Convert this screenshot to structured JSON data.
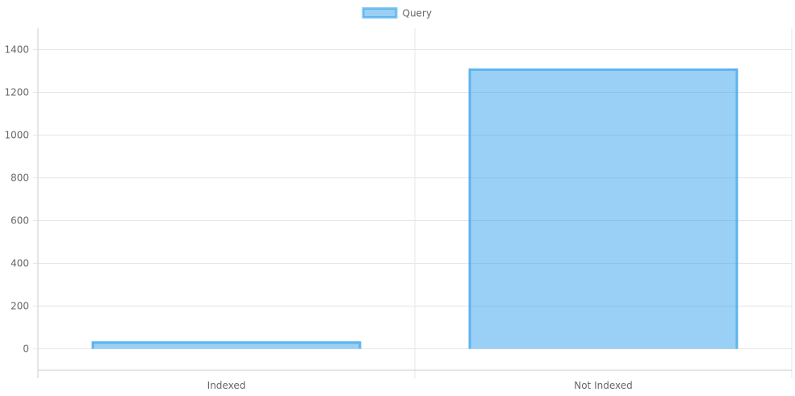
{
  "chart_data": {
    "type": "bar",
    "categories": [
      "Indexed",
      "Not Indexed"
    ],
    "series": [
      {
        "name": "Query",
        "values": [
          35,
          1312
        ],
        "fill": "#36a2eb",
        "fill_opacity": 0.5,
        "stroke": "#36a2eb"
      }
    ],
    "ylim": [
      -100,
      1500
    ],
    "yticks": [
      0,
      200,
      400,
      600,
      800,
      1000,
      1200,
      1400
    ],
    "grid": true,
    "legend": "top-center"
  },
  "colors": {
    "grid": "#e5e5e5",
    "axis": "#cccccc",
    "tick_text": "#666666"
  }
}
